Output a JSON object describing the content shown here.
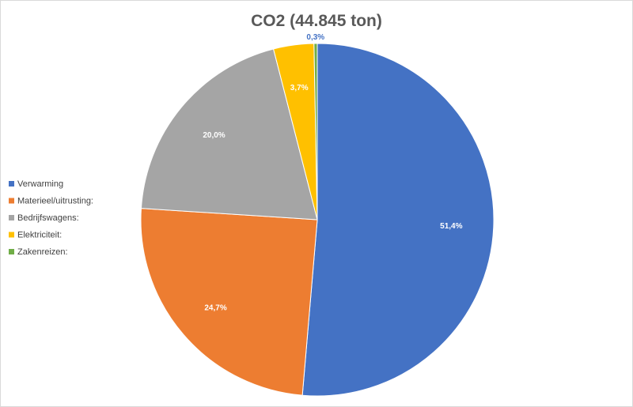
{
  "chart_data": {
    "type": "pie",
    "title": "CO2 (44.845 ton)",
    "categories": [
      "Verwarming",
      "Materieel/uitrusting:",
      "Bedrijfswagens:",
      "Elektriciteit:",
      "Zakenreizen:"
    ],
    "values": [
      51.4,
      24.7,
      20.0,
      3.7,
      0.3
    ],
    "labels": [
      "51,4%",
      "24,7%",
      "20,0%",
      "3,7%",
      "0,3%"
    ],
    "colors": [
      "#4472c4",
      "#ed7d31",
      "#a5a5a5",
      "#ffc000",
      "#70ad47"
    ],
    "start": "12 o'clock",
    "direction": "clockwise",
    "legend": "left"
  }
}
